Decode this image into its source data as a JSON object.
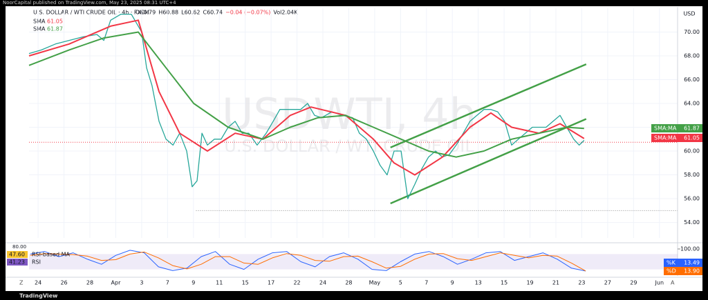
{
  "header": {
    "published": "NoorCapital published on TradingView.com, May 23, 2025 08:31 UTC+4",
    "symbol": "U.S. DOLLAR / WTI CRUDE OIL · 4h · FXCM",
    "ohlc": [
      "O60.79",
      "H60.88",
      "L60.62",
      "C60.74",
      "−0.04 (−0.07%)",
      "Vol2.04K"
    ],
    "currency": "USD",
    "watermark": "USDWTI, 4h",
    "watermark_sub": "U.S. DOLLAR / WTI CRUDE OIL",
    "brand": "TradingView"
  },
  "chart_data": {
    "type": "line",
    "color": "#26a69a",
    "x": [
      -0.35,
      0.13,
      0.67,
      1.2,
      1.74,
      2.27,
      2.54,
      2.8,
      3.2,
      3.6,
      3.87,
      4.0,
      4.19,
      4.4,
      4.67,
      4.94,
      5.21,
      5.47,
      5.74,
      5.95,
      6.14,
      6.33,
      6.54,
      6.81,
      7.07,
      7.34,
      7.61,
      7.88,
      8.14,
      8.46,
      8.81,
      9.08,
      9.34,
      9.74,
      10.14,
      10.41,
      10.68,
      10.95,
      11.35,
      11.75,
      12.15,
      12.41,
      12.68,
      12.95,
      13.21,
      13.48,
      13.75,
      14.02,
      14.28,
      14.55,
      14.82,
      15.08,
      15.35,
      15.62,
      15.88,
      16.15,
      16.42,
      16.68,
      16.95,
      17.22,
      17.49,
      17.75,
      18.02,
      18.29,
      18.55,
      18.82,
      19.09,
      19.35,
      19.62,
      19.89,
      20.16,
      20.42,
      20.69,
      20.9,
      21.09
    ],
    "values": [
      68.2,
      68.5,
      69,
      69.3,
      69.6,
      69.8,
      69.3,
      71,
      71.5,
      71.5,
      70.5,
      70,
      67,
      65.5,
      62.5,
      61,
      60.5,
      61.5,
      60,
      57,
      57.5,
      61.5,
      60.5,
      61,
      61,
      62,
      62.5,
      61.5,
      61.5,
      60.5,
      61.5,
      62.5,
      63.5,
      63.5,
      63.5,
      64,
      63,
      62.8,
      63.3,
      63,
      62.8,
      61.5,
      61,
      60,
      58.8,
      58,
      60,
      60,
      56,
      57.2,
      58.5,
      59.5,
      60,
      59.5,
      59.7,
      60.5,
      61.5,
      62.5,
      63,
      63.5,
      63.5,
      63.3,
      62.5,
      60.5,
      61,
      61.5,
      62,
      62,
      62,
      62.5,
      63,
      62,
      61,
      60.5,
      60.9
    ],
    "sma": [
      {
        "name": "SMA",
        "value_label": "61.05",
        "tag": "SMA:MA",
        "color": "#f23645",
        "x": [
          -0.35,
          1.2,
          2.8,
          3.87,
          4.67,
          5.47,
          6.54,
          7.61,
          8.68,
          9.74,
          10.54,
          11.88,
          12.95,
          13.75,
          14.55,
          15.62,
          16.68,
          17.49,
          18.29,
          19.35,
          20.16,
          21.09
        ],
        "values": [
          68,
          69,
          70.5,
          71,
          65,
          61.5,
          60,
          61.5,
          61,
          63,
          63.7,
          63,
          61,
          59,
          58,
          59.5,
          62,
          63.2,
          62,
          61.5,
          62.3,
          61.05
        ]
      },
      {
        "name": "SMA",
        "value_label": "61.87",
        "tag": "SMA:MA",
        "color": "#43a047",
        "x": [
          -0.35,
          1.2,
          2.54,
          3.87,
          4.94,
          6.01,
          7.34,
          8.68,
          9.74,
          10.81,
          11.88,
          12.95,
          14.02,
          15.08,
          16.15,
          17.22,
          18.29,
          19.35,
          20.42,
          21.09
        ],
        "values": [
          67.2,
          68.5,
          69.5,
          70,
          67,
          64,
          62,
          61,
          62,
          62.8,
          63,
          62,
          61,
          60,
          59.5,
          60,
          61,
          61.5,
          62,
          61.9
        ]
      }
    ],
    "trendlines": [
      {
        "x": [
          13.61,
          21.17
        ],
        "y": [
          60.3,
          67.3
        ]
      },
      {
        "x": [
          13.61,
          21.17
        ],
        "y": [
          55.6,
          62.7
        ]
      }
    ],
    "support": 55,
    "last": 60.74,
    "xlim": [
      -0.35,
      24.7
    ],
    "xticks": [
      {
        "value": 0,
        "label": "24"
      },
      {
        "value": 1,
        "label": "26"
      },
      {
        "value": 2,
        "label": "28"
      },
      {
        "value": 3,
        "label": "Apr"
      },
      {
        "value": 4,
        "label": "3"
      },
      {
        "value": 5,
        "label": "7"
      },
      {
        "value": 6,
        "label": "9"
      },
      {
        "value": 7,
        "label": "11"
      },
      {
        "value": 8,
        "label": "15"
      },
      {
        "value": 9,
        "label": "17"
      },
      {
        "value": 10,
        "label": "22"
      },
      {
        "value": 11,
        "label": "24"
      },
      {
        "value": 12,
        "label": "28"
      },
      {
        "value": 13,
        "label": "May"
      },
      {
        "value": 14,
        "label": "5"
      },
      {
        "value": 15,
        "label": "7"
      },
      {
        "value": 16,
        "label": "9"
      },
      {
        "value": 17,
        "label": "13"
      },
      {
        "value": 18,
        "label": "15"
      },
      {
        "value": 19,
        "label": "19"
      },
      {
        "value": 20,
        "label": "21"
      },
      {
        "value": 21,
        "label": "23"
      },
      {
        "value": 22,
        "label": "27"
      },
      {
        "value": 23,
        "label": "29"
      },
      {
        "value": 24,
        "label": "Jun"
      }
    ],
    "ylim": [
      52.7,
      72
    ],
    "yticks": [
      {
        "value": 54,
        "label": "54.00"
      },
      {
        "value": 56,
        "label": "56.00"
      },
      {
        "value": 58,
        "label": "58.00"
      },
      {
        "value": 60,
        "label": "60.00"
      },
      {
        "value": 62,
        "label": "62.00"
      },
      {
        "value": 64,
        "label": "64.00"
      },
      {
        "value": 66,
        "label": "66.00"
      },
      {
        "value": 68,
        "label": "68.00"
      },
      {
        "value": 70,
        "label": "70.00"
      }
    ],
    "oscillator": {
      "ylim": [
        0,
        100
      ],
      "yticks": [
        {
          "value": 100,
          "label": "100.00"
        }
      ],
      "band": [
        20,
        80
      ],
      "left_label": "80.00",
      "rsi_labels": [
        {
          "name": "RSI-based MA",
          "value": "47.60",
          "color": "#f7c530"
        },
        {
          "name": "RSI",
          "value": "41.23",
          "color": "#7e57c2"
        }
      ],
      "x": [
        -0.3,
        0.25,
        0.8,
        1.35,
        1.9,
        2.45,
        3.0,
        3.55,
        4.1,
        4.65,
        5.2,
        5.75,
        6.3,
        6.85,
        7.4,
        7.95,
        8.5,
        9.05,
        9.6,
        10.15,
        10.7,
        11.25,
        11.8,
        12.35,
        12.9,
        13.45,
        14.0,
        14.55,
        15.1,
        15.65,
        16.2,
        16.75,
        17.3,
        17.85,
        18.4,
        18.95,
        19.5,
        20.05,
        20.6,
        21.15
      ],
      "series": [
        {
          "name": "%K",
          "value_label": "13.49",
          "color": "#2962ff",
          "values": [
            80,
            90,
            70,
            85,
            60,
            40,
            75,
            95,
            85,
            30,
            15,
            25,
            70,
            90,
            40,
            20,
            60,
            85,
            90,
            50,
            30,
            70,
            85,
            60,
            20,
            15,
            50,
            80,
            90,
            70,
            40,
            60,
            85,
            90,
            55,
            70,
            85,
            60,
            25,
            13.49
          ]
        },
        {
          "name": "%D",
          "value_label": "13.90",
          "color": "#ff6d00",
          "values": [
            75,
            82,
            80,
            78,
            72,
            55,
            58,
            80,
            88,
            65,
            35,
            22,
            40,
            70,
            70,
            45,
            40,
            65,
            82,
            75,
            55,
            52,
            70,
            72,
            50,
            25,
            32,
            60,
            80,
            82,
            62,
            55,
            70,
            85,
            75,
            65,
            75,
            72,
            45,
            13.9
          ]
        }
      ]
    }
  }
}
